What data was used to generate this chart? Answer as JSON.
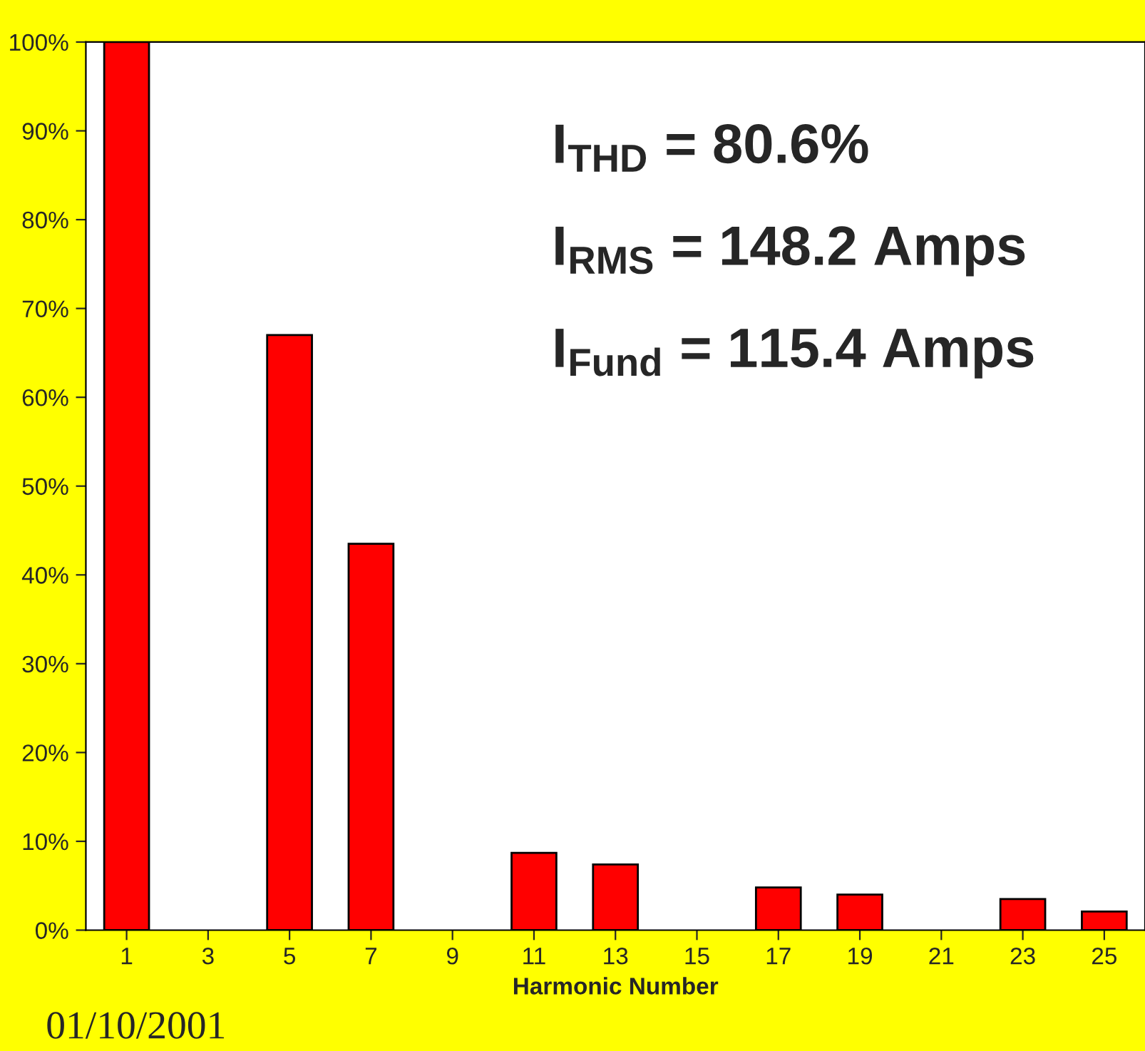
{
  "chart_data": {
    "type": "bar",
    "xlabel": "Harmonic Number",
    "categories": [
      "1",
      "3",
      "5",
      "7",
      "9",
      "11",
      "13",
      "15",
      "17",
      "19",
      "21",
      "23",
      "25"
    ],
    "values": [
      100,
      0,
      67,
      43.5,
      0,
      8.7,
      7.4,
      0,
      4.8,
      4.0,
      0,
      3.5,
      2.1
    ],
    "color": "#ff0000",
    "ylim": [
      0,
      100
    ],
    "yticks": [
      {
        "value": 0,
        "label": "0%"
      },
      {
        "value": 10,
        "label": "10%"
      },
      {
        "value": 20,
        "label": "20%"
      },
      {
        "value": 30,
        "label": "30%"
      },
      {
        "value": 40,
        "label": "40%"
      },
      {
        "value": 50,
        "label": "50%"
      },
      {
        "value": 60,
        "label": "60%"
      },
      {
        "value": 70,
        "label": "70%"
      },
      {
        "value": 80,
        "label": "80%"
      },
      {
        "value": 90,
        "label": "90%"
      },
      {
        "value": 100,
        "label": "100%"
      }
    ],
    "grid": false,
    "annotations": [
      "I$_{THD}$ = 80.6%",
      "I$_{RMS}$ = 148.2 Amps",
      "I$_{Fund}$ = 115.4 Amps",
      "01/10/2001"
    ]
  }
}
